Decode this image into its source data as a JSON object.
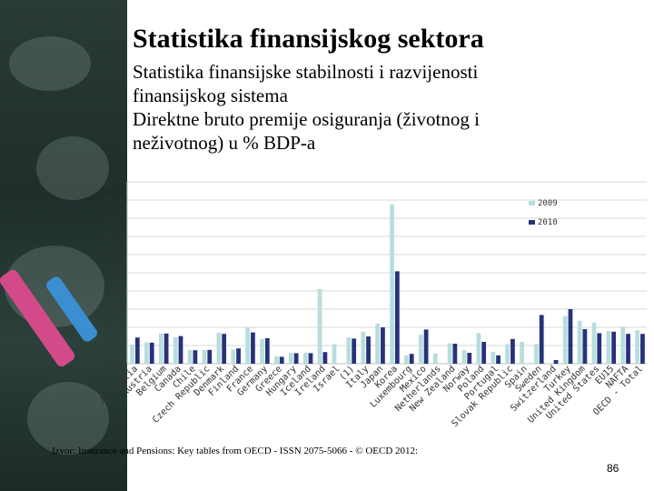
{
  "slide": {
    "title": "Statistika finansijskog sektora",
    "subtitle_lines": [
      "Statistika finansijske stabilnosti i razvijenosti",
      "finansijskog sistema",
      "Direktne bruto premije osiguranja (životnog i",
      "neživotnog) u % BDP-a"
    ],
    "source": "Izvor: Insurance and Pensions: Key tables from OECD - ISSN 2075-5066 - © OECD 2012:",
    "page_number": "86"
  },
  "colors": {
    "series_2009": "#b7dedd",
    "series_2010": "#27327b"
  },
  "chart_data": {
    "type": "bar",
    "title": "",
    "xlabel": "",
    "ylabel": "",
    "ylim": [
      0,
      50
    ],
    "yticks": [
      "0.0",
      "5.0",
      "10.0",
      "15.0",
      "20.0",
      "25.0",
      "30.0",
      "35.0",
      "40.0",
      "45.0",
      "50.0"
    ],
    "grid": true,
    "legend_position": "top-right",
    "categories": [
      "Australia",
      "Austria",
      "Belgium",
      "Canada",
      "Chile",
      "Czech Republic",
      "Denmark",
      "Finland",
      "France",
      "Germany",
      "Greece",
      "Hungary",
      "Iceland",
      "Ireland",
      "Israel",
      "(1)",
      "Italy",
      "Japan",
      "Korea",
      "Luxembourg",
      "Mexico",
      "Netherlands",
      "New Zealand",
      "Norway",
      "Poland",
      "Portugal",
      "Slovak Republic",
      "Spain",
      "Sweden",
      "Switzerland",
      "Turkey",
      "United Kingdom",
      "United States",
      "EU15",
      "NAFTA",
      "OECD - Total"
    ],
    "series": [
      {
        "name": "2009",
        "values": [
          5.3,
          5.9,
          8.3,
          7.3,
          3.8,
          3.8,
          8.5,
          3.9,
          10.0,
          6.8,
          2.0,
          3.0,
          3.0,
          20.5,
          5.4,
          7.2,
          8.8,
          11.0,
          43.8,
          2.3,
          8.0,
          2.8,
          5.6,
          3.7,
          8.4,
          3.3,
          5.4,
          6.0,
          5.4,
          0.0,
          13.1,
          11.8,
          11.3,
          9.0,
          10.2,
          9.2
        ]
      },
      {
        "name": "2010",
        "values": [
          7.2,
          5.8,
          8.3,
          7.6,
          3.7,
          3.8,
          8.2,
          4.2,
          8.6,
          7.0,
          1.9,
          2.9,
          2.9,
          3.2,
          0.0,
          6.9,
          7.5,
          10.0,
          25.4,
          2.7,
          9.4,
          0.0,
          5.5,
          3.0,
          6.0,
          2.3,
          6.8,
          0.0,
          13.4,
          1.0,
          15.0,
          9.5,
          8.4,
          8.8,
          8.2,
          8.2
        ]
      }
    ]
  }
}
